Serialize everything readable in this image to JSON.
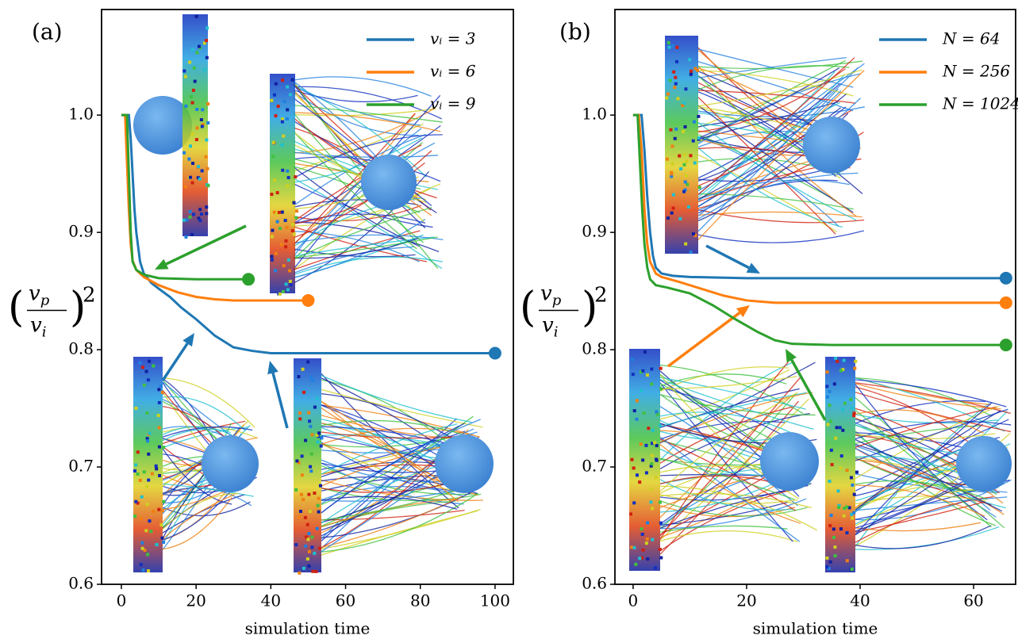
{
  "chart_data": [
    {
      "type": "line",
      "panel_label": "(a)",
      "xlabel": "simulation time",
      "ylabel": {
        "numerator": "v",
        "numerator_sub": "p",
        "denominator": "v",
        "denominator_sub": "i",
        "exponent": "2"
      },
      "xlim": [
        -5.3,
        104.9
      ],
      "ylim": [
        0.6,
        1.09
      ],
      "xticks": [
        0,
        20,
        40,
        60,
        80,
        100
      ],
      "yticks": [
        0.6,
        0.7,
        0.8,
        0.9,
        {
          "value": 1,
          "label": "1.0"
        }
      ],
      "legend": "upper right",
      "end_markers": true,
      "series": [
        {
          "name": "vᵢ = 3",
          "color": "#1f77b4",
          "x": [
            0,
            2,
            2.5,
            3,
            3.5,
            4,
            5,
            6,
            8,
            10,
            13,
            16,
            20,
            25,
            30,
            35,
            40,
            60,
            80,
            100
          ],
          "values": [
            1,
            1,
            0.98,
            0.95,
            0.92,
            0.9,
            0.875,
            0.865,
            0.857,
            0.852,
            0.845,
            0.836,
            0.826,
            0.812,
            0.802,
            0.799,
            0.797,
            0.797,
            0.797,
            0.797
          ]
        },
        {
          "name": "vᵢ = 6",
          "color": "#ff7f0e",
          "x": [
            0,
            1,
            1.5,
            2,
            2.5,
            3,
            4,
            6,
            10,
            15,
            20,
            25,
            30,
            40,
            50
          ],
          "values": [
            1,
            1,
            0.96,
            0.92,
            0.89,
            0.876,
            0.868,
            0.862,
            0.855,
            0.849,
            0.845,
            0.843,
            0.842,
            0.842,
            0.842
          ]
        },
        {
          "name": "vᵢ = 9",
          "color": "#2ca02c",
          "x": [
            0,
            1.5,
            2,
            2.5,
            3,
            4,
            6,
            10,
            20,
            34
          ],
          "values": [
            1,
            1,
            0.95,
            0.9,
            0.875,
            0.868,
            0.864,
            0.861,
            0.86,
            0.86
          ]
        }
      ]
    },
    {
      "type": "line",
      "panel_label": "(b)",
      "xlabel": "simulation time",
      "ylabel": {
        "numerator": "v",
        "numerator_sub": "p",
        "denominator": "v",
        "denominator_sub": "i",
        "exponent": "2"
      },
      "xlim": [
        -3.2,
        67.4
      ],
      "ylim": [
        0.6,
        1.09
      ],
      "xticks": [
        0,
        20,
        40,
        60
      ],
      "yticks": [
        0.6,
        0.7,
        0.8,
        0.9,
        {
          "value": 1,
          "label": "1.0"
        }
      ],
      "legend": "upper right",
      "end_markers": true,
      "series": [
        {
          "name": "N = 64",
          "color": "#1f77b4",
          "x": [
            0,
            1.5,
            2,
            2.5,
            3,
            3.5,
            4,
            5,
            7,
            10,
            20,
            40,
            65.7
          ],
          "values": [
            1,
            1,
            0.97,
            0.93,
            0.9,
            0.88,
            0.87,
            0.865,
            0.863,
            0.862,
            0.861,
            0.861,
            0.861
          ]
        },
        {
          "name": "N = 256",
          "color": "#ff7f0e",
          "x": [
            0,
            1,
            1.5,
            2,
            2.5,
            3,
            4,
            5,
            8,
            12,
            16,
            20,
            25,
            40,
            65.7
          ],
          "values": [
            1,
            1,
            0.97,
            0.92,
            0.89,
            0.875,
            0.865,
            0.862,
            0.858,
            0.852,
            0.846,
            0.842,
            0.84,
            0.84,
            0.84
          ]
        },
        {
          "name": "N = 1024",
          "color": "#2ca02c",
          "x": [
            0,
            0.8,
            1.2,
            1.6,
            2,
            2.5,
            3,
            4,
            6,
            10,
            14,
            18,
            22,
            25,
            28,
            35,
            50,
            65.7
          ],
          "values": [
            1,
            1,
            0.96,
            0.92,
            0.89,
            0.87,
            0.86,
            0.855,
            0.853,
            0.848,
            0.838,
            0.826,
            0.815,
            0.808,
            0.805,
            0.804,
            0.804,
            0.804
          ]
        }
      ]
    }
  ]
}
